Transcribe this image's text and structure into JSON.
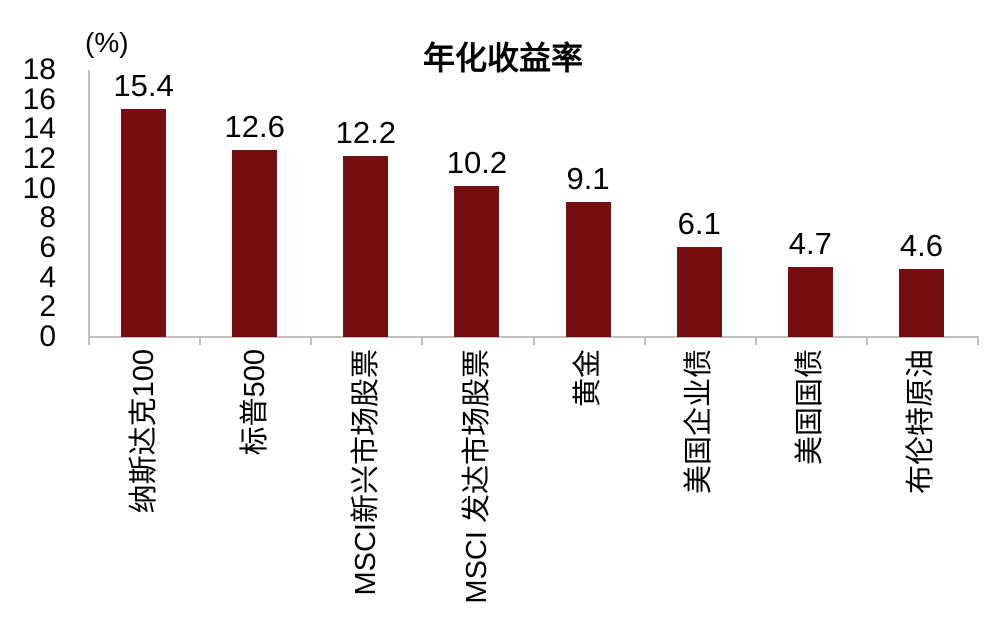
{
  "chart_data": {
    "type": "bar",
    "title": "年化收益率",
    "ylabel": "(%)",
    "xlabel": "",
    "categories": [
      "纳斯达克100",
      "标普500",
      "MSCI新兴市场股票",
      "MSCI 发达市场股票",
      "黄金",
      "美国企业债",
      "美国国债",
      "布伦特原油"
    ],
    "values": [
      15.4,
      12.6,
      12.2,
      10.2,
      9.1,
      6.1,
      4.7,
      4.6
    ],
    "value_labels": [
      "15.4",
      "12.6",
      "12.2",
      "10.2",
      "9.1",
      "6.1",
      "4.7",
      "4.6"
    ],
    "ylim": [
      0,
      18
    ],
    "yticks": [
      0,
      2,
      4,
      6,
      8,
      10,
      12,
      14,
      16,
      18
    ],
    "grid": false,
    "legend": "none",
    "bar_color": "#750E0E",
    "axis_color": "#BFBFBF",
    "text_color": "#000000"
  }
}
